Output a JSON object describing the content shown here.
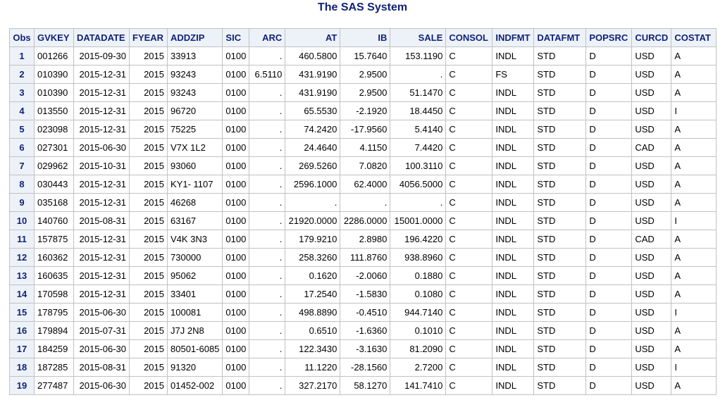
{
  "title": "The SAS System",
  "table": {
    "headers": [
      "Obs",
      "GVKEY",
      "DATADATE",
      "FYEAR",
      "ADDZIP",
      "SIC",
      "ARC",
      "AT",
      "IB",
      "SALE",
      "CONSOL",
      "INDFMT",
      "DATAFMT",
      "POPSRC",
      "CURCD",
      "COSTAT"
    ],
    "rows": [
      [
        "1",
        "001266",
        "2015-09-30",
        "2015",
        "33913",
        "0100",
        ".",
        "460.5800",
        "15.7640",
        "153.1190",
        "C",
        "INDL",
        "STD",
        "D",
        "USD",
        "A"
      ],
      [
        "2",
        "010390",
        "2015-12-31",
        "2015",
        "93243",
        "0100",
        "6.5110",
        "431.9190",
        "2.9500",
        ".",
        "C",
        "FS",
        "STD",
        "D",
        "USD",
        "A"
      ],
      [
        "3",
        "010390",
        "2015-12-31",
        "2015",
        "93243",
        "0100",
        ".",
        "431.9190",
        "2.9500",
        "51.1470",
        "C",
        "INDL",
        "STD",
        "D",
        "USD",
        "A"
      ],
      [
        "4",
        "013550",
        "2015-12-31",
        "2015",
        "96720",
        "0100",
        ".",
        "65.5530",
        "-2.1920",
        "18.4450",
        "C",
        "INDL",
        "STD",
        "D",
        "USD",
        "I"
      ],
      [
        "5",
        "023098",
        "2015-12-31",
        "2015",
        "75225",
        "0100",
        ".",
        "74.2420",
        "-17.9560",
        "5.4140",
        "C",
        "INDL",
        "STD",
        "D",
        "USD",
        "A"
      ],
      [
        "6",
        "027301",
        "2015-06-30",
        "2015",
        "V7X 1L2",
        "0100",
        ".",
        "24.4640",
        "4.1150",
        "7.4420",
        "C",
        "INDL",
        "STD",
        "D",
        "CAD",
        "A"
      ],
      [
        "7",
        "029962",
        "2015-10-31",
        "2015",
        "93060",
        "0100",
        ".",
        "269.5260",
        "7.0820",
        "100.3110",
        "C",
        "INDL",
        "STD",
        "D",
        "USD",
        "A"
      ],
      [
        "8",
        "030443",
        "2015-12-31",
        "2015",
        "KY1- 1107",
        "0100",
        ".",
        "2596.1000",
        "62.4000",
        "4056.5000",
        "C",
        "INDL",
        "STD",
        "D",
        "USD",
        "A"
      ],
      [
        "9",
        "035168",
        "2015-12-31",
        "2015",
        "46268",
        "0100",
        ".",
        ".",
        ".",
        ".",
        "C",
        "INDL",
        "STD",
        "D",
        "USD",
        "A"
      ],
      [
        "10",
        "140760",
        "2015-08-31",
        "2015",
        "63167",
        "0100",
        ".",
        "21920.0000",
        "2286.0000",
        "15001.0000",
        "C",
        "INDL",
        "STD",
        "D",
        "USD",
        "I"
      ],
      [
        "11",
        "157875",
        "2015-12-31",
        "2015",
        "V4K 3N3",
        "0100",
        ".",
        "179.9210",
        "2.8980",
        "196.4220",
        "C",
        "INDL",
        "STD",
        "D",
        "CAD",
        "A"
      ],
      [
        "12",
        "160362",
        "2015-12-31",
        "2015",
        "730000",
        "0100",
        ".",
        "258.3260",
        "111.8760",
        "938.8960",
        "C",
        "INDL",
        "STD",
        "D",
        "USD",
        "A"
      ],
      [
        "13",
        "160635",
        "2015-12-31",
        "2015",
        "95062",
        "0100",
        ".",
        "0.1620",
        "-2.0060",
        "0.1880",
        "C",
        "INDL",
        "STD",
        "D",
        "USD",
        "A"
      ],
      [
        "14",
        "170598",
        "2015-12-31",
        "2015",
        "33401",
        "0100",
        ".",
        "17.2540",
        "-1.5830",
        "0.1080",
        "C",
        "INDL",
        "STD",
        "D",
        "USD",
        "A"
      ],
      [
        "15",
        "178795",
        "2015-06-30",
        "2015",
        "100081",
        "0100",
        ".",
        "498.8890",
        "-0.4510",
        "944.7140",
        "C",
        "INDL",
        "STD",
        "D",
        "USD",
        "I"
      ],
      [
        "16",
        "179894",
        "2015-07-31",
        "2015",
        "J7J 2N8",
        "0100",
        ".",
        "0.6510",
        "-1.6360",
        "0.1010",
        "C",
        "INDL",
        "STD",
        "D",
        "USD",
        "A"
      ],
      [
        "17",
        "184259",
        "2015-06-30",
        "2015",
        "80501-6085",
        "0100",
        ".",
        "122.3430",
        "-3.1630",
        "81.2090",
        "C",
        "INDL",
        "STD",
        "D",
        "USD",
        "A"
      ],
      [
        "18",
        "187285",
        "2015-08-31",
        "2015",
        "91320",
        "0100",
        ".",
        "11.1220",
        "-28.1560",
        "2.7200",
        "C",
        "INDL",
        "STD",
        "D",
        "USD",
        "I"
      ],
      [
        "19",
        "277487",
        "2015-06-30",
        "2015",
        "01452-002",
        "0100",
        ".",
        "327.2170",
        "58.1270",
        "141.7410",
        "C",
        "INDL",
        "STD",
        "D",
        "USD",
        "A"
      ]
    ]
  }
}
